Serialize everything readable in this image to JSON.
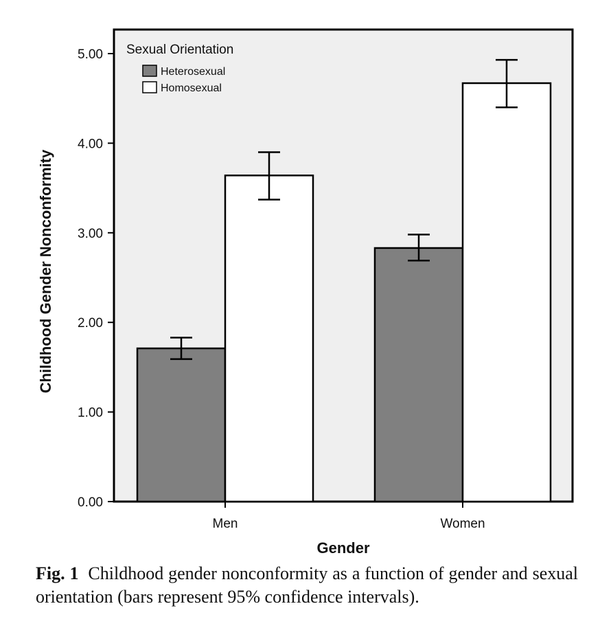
{
  "chart_data": {
    "type": "bar",
    "categories": [
      "Men",
      "Women"
    ],
    "series": [
      {
        "name": "Heterosexual",
        "color": "#808080",
        "values": [
          1.71,
          2.83
        ],
        "ci_low": [
          1.59,
          2.69
        ],
        "ci_high": [
          1.83,
          2.98
        ]
      },
      {
        "name": "Homosexual",
        "color": "#ffffff",
        "values": [
          3.64,
          4.67
        ],
        "ci_low": [
          3.37,
          4.4
        ],
        "ci_high": [
          3.9,
          4.93
        ]
      }
    ],
    "xlabel": "Gender",
    "ylabel": "Childhood Gender Nonconformity",
    "ylim": [
      0,
      5.0
    ],
    "yticks": [
      "0.00",
      "1.00",
      "2.00",
      "3.00",
      "4.00",
      "5.00"
    ],
    "legend_title": "Sexual Orientation",
    "legend_position": "top-left",
    "plot_background": "#efefef",
    "grid": false
  },
  "caption": {
    "label": "Fig. 1",
    "text": "Childhood gender nonconformity as a function of gender and sexual orientation (bars represent 95% confidence intervals)."
  }
}
